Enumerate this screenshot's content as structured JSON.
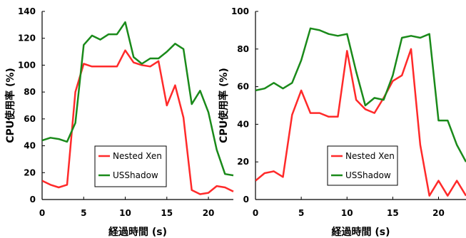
{
  "chart_data": [
    {
      "type": "line",
      "xlabel": "経過時間 (s)",
      "ylabel": "CPU使用率 (%)",
      "xlim": [
        0,
        23
      ],
      "ylim": [
        0,
        140
      ],
      "xticks": [
        0,
        5,
        10,
        15,
        20
      ],
      "yticks": [
        0,
        20,
        40,
        60,
        80,
        100,
        120,
        140
      ],
      "legend_position": "bottom-center",
      "series": [
        {
          "name": "Nested Xen",
          "color": "#ff2a2a",
          "x": [
            0,
            1,
            2,
            3,
            4,
            5,
            6,
            7,
            8,
            9,
            10,
            11,
            12,
            13,
            14,
            15,
            16,
            17,
            18,
            19,
            20,
            21,
            22,
            23
          ],
          "y": [
            14,
            11,
            9,
            11,
            80,
            101,
            99,
            99,
            99,
            99,
            111,
            102,
            100,
            99,
            103,
            70,
            85,
            61,
            7,
            4,
            5,
            10,
            9,
            6
          ]
        },
        {
          "name": "USShadow",
          "color": "#1a8a1a",
          "x": [
            0,
            1,
            2,
            3,
            4,
            5,
            6,
            7,
            8,
            9,
            10,
            11,
            12,
            13,
            14,
            15,
            16,
            17,
            18,
            19,
            20,
            21,
            22,
            23
          ],
          "y": [
            44,
            46,
            45,
            43,
            57,
            115,
            122,
            119,
            123,
            123,
            132,
            106,
            101,
            105,
            105,
            110,
            116,
            112,
            71,
            81,
            65,
            37,
            19,
            18
          ]
        }
      ]
    },
    {
      "type": "line",
      "xlabel": "経過時間 (s)",
      "ylabel": "CPU使用率 (%)",
      "xlim": [
        0,
        23
      ],
      "ylim": [
        0,
        100
      ],
      "xticks": [
        0,
        5,
        10,
        15,
        20
      ],
      "yticks": [
        0,
        20,
        40,
        60,
        80,
        100
      ],
      "legend_position": "bottom-center",
      "series": [
        {
          "name": "Nested Xen",
          "color": "#ff2a2a",
          "x": [
            0,
            1,
            2,
            3,
            4,
            5,
            6,
            7,
            8,
            9,
            10,
            11,
            12,
            13,
            14,
            15,
            16,
            17,
            18,
            19,
            20,
            21,
            22,
            23
          ],
          "y": [
            10,
            14,
            15,
            12,
            45,
            58,
            46,
            46,
            44,
            44,
            79,
            53,
            48,
            46,
            54,
            63,
            66,
            80,
            29,
            2,
            10,
            2,
            10,
            2
          ]
        },
        {
          "name": "USShadow",
          "color": "#1a8a1a",
          "x": [
            0,
            1,
            2,
            3,
            4,
            5,
            6,
            7,
            8,
            9,
            10,
            11,
            12,
            13,
            14,
            15,
            16,
            17,
            18,
            19,
            20,
            21,
            22,
            23
          ],
          "y": [
            58,
            59,
            62,
            59,
            62,
            74,
            91,
            90,
            88,
            87,
            88,
            68,
            50,
            54,
            53,
            66,
            86,
            87,
            86,
            88,
            42,
            42,
            29,
            20
          ]
        }
      ]
    }
  ]
}
